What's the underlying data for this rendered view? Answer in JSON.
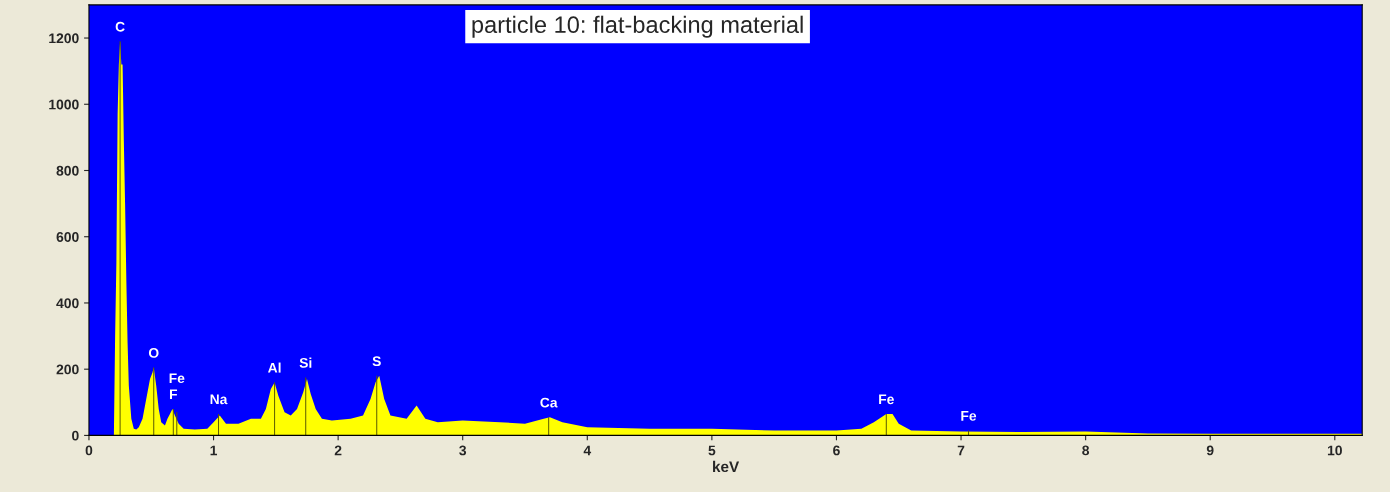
{
  "chart_data": {
    "type": "area",
    "title": "particle 10: flat-backing material",
    "xlabel": "keV",
    "x": [
      0,
      0.2,
      0.21,
      0.22,
      0.23,
      0.24,
      0.25,
      0.26,
      0.27,
      0.28,
      0.29,
      0.3,
      0.31,
      0.32,
      0.34,
      0.36,
      0.38,
      0.4,
      0.43,
      0.45,
      0.47,
      0.49,
      0.51,
      0.52,
      0.54,
      0.56,
      0.58,
      0.61,
      0.63,
      0.65,
      0.67,
      0.69,
      0.72,
      0.76,
      0.85,
      0.95,
      1.0,
      1.05,
      1.1,
      1.2,
      1.3,
      1.38,
      1.42,
      1.46,
      1.49,
      1.52,
      1.57,
      1.62,
      1.67,
      1.72,
      1.75,
      1.78,
      1.82,
      1.87,
      1.95,
      2.1,
      2.2,
      2.26,
      2.3,
      2.33,
      2.37,
      2.42,
      2.55,
      2.63,
      2.7,
      2.8,
      3.0,
      3.3,
      3.5,
      3.65,
      3.7,
      3.8,
      4.0,
      4.5,
      5.0,
      5.5,
      6.0,
      6.2,
      6.3,
      6.4,
      6.45,
      6.5,
      6.6,
      7.0,
      7.5,
      8.0,
      8.5,
      9.0,
      9.5,
      10.22
    ],
    "series": [
      {
        "color": "#ffff00",
        "values": [
          0,
          0,
          300,
          520,
          970,
          1120,
          1190,
          1120,
          1120,
          890,
          700,
          470,
          280,
          150,
          50,
          20,
          18,
          25,
          50,
          90,
          130,
          170,
          190,
          205,
          150,
          80,
          40,
          30,
          50,
          65,
          80,
          60,
          35,
          20,
          18,
          20,
          40,
          60,
          35,
          35,
          50,
          50,
          80,
          140,
          160,
          120,
          70,
          60,
          80,
          130,
          170,
          125,
          80,
          50,
          45,
          50,
          60,
          110,
          160,
          180,
          110,
          60,
          50,
          90,
          50,
          40,
          45,
          40,
          35,
          50,
          55,
          40,
          25,
          20,
          20,
          15,
          15,
          20,
          40,
          65,
          65,
          35,
          15,
          12,
          10,
          12,
          6,
          5,
          5,
          5
        ]
      },
      {
        "type": "bar",
        "color": "#5a5a00",
        "x": [
          0.25,
          0.52,
          0.677,
          0.705,
          1.04,
          1.49,
          1.74,
          2.31,
          3.69,
          6.4,
          7.06
        ],
        "values": [
          1190,
          205,
          80,
          70,
          65,
          160,
          175,
          180,
          55,
          65,
          15
        ]
      }
    ],
    "annotations": [
      {
        "text": "C",
        "x": 0.25,
        "y": 1190
      },
      {
        "text": "O",
        "x": 0.52,
        "y": 205
      },
      {
        "text": "F",
        "x": 0.677,
        "y": 80
      },
      {
        "text": "Fe",
        "x": 0.705,
        "y": 70
      },
      {
        "text": "Na",
        "x": 1.04,
        "y": 65
      },
      {
        "text": "Al",
        "x": 1.49,
        "y": 160
      },
      {
        "text": "Si",
        "x": 1.74,
        "y": 175
      },
      {
        "text": "S",
        "x": 2.31,
        "y": 180
      },
      {
        "text": "Ca",
        "x": 3.69,
        "y": 55
      },
      {
        "text": "Fe",
        "x": 6.4,
        "y": 65
      },
      {
        "text": "Fe",
        "x": 7.06,
        "y": 15
      }
    ],
    "xlim": [
      0,
      10.22
    ],
    "ylim": [
      0,
      1300
    ],
    "xticks": [
      0,
      1,
      2,
      3,
      4,
      5,
      6,
      7,
      8,
      9,
      10
    ],
    "yticks": [
      0,
      200,
      400,
      600,
      800,
      1000,
      1200
    ],
    "grid": false,
    "legend": false
  }
}
